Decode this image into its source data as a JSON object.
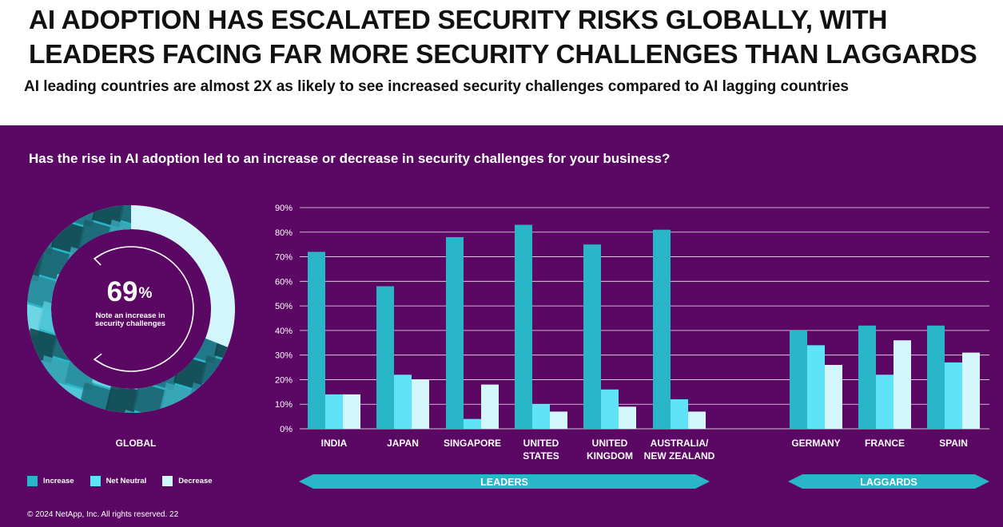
{
  "header": {
    "title": "AI ADOPTION HAS ESCALATED SECURITY RISKS GLOBALLY, WITH LEADERS FACING FAR MORE SECURITY CHALLENGES THAN LAGGARDS",
    "subtitle": "AI leading countries are almost 2X as likely to see increased security challenges compared to AI lagging countries"
  },
  "panel": {
    "question": "Has the rise in AI adoption led to an increase or decrease in security challenges for your business?"
  },
  "donut": {
    "value": "69",
    "unit": "%",
    "note": "Note an increase in security challenges",
    "label": "GLOBAL",
    "fraction": 0.69
  },
  "colors": {
    "background": "#5b0764",
    "increase": "#29b6c9",
    "net_neutral": "#5fe3f6",
    "decrease": "#d2f6fb",
    "grid": "#ffffff",
    "group_arrow": "#29b6c9"
  },
  "legend": [
    {
      "label": "Increase",
      "color": "#29b6c9"
    },
    {
      "label": "Net Neutral",
      "color": "#5fe3f6"
    },
    {
      "label": "Decrease",
      "color": "#d2f6fb"
    }
  ],
  "groups": [
    {
      "label": "LEADERS"
    },
    {
      "label": "LAGGARDS"
    }
  ],
  "footer": "© 2024 NetApp, Inc. All rights reserved.  22",
  "chart_data": {
    "type": "bar",
    "categories": [
      [
        "INDIA"
      ],
      [
        "JAPAN"
      ],
      [
        "SINGAPORE"
      ],
      [
        "UNITED",
        "STATES"
      ],
      [
        "UNITED",
        "KINGDOM"
      ],
      [
        "AUSTRALIA/",
        "NEW ZEALAND"
      ],
      [
        "GERMANY"
      ],
      [
        "FRANCE"
      ],
      [
        "SPAIN"
      ]
    ],
    "series": [
      {
        "name": "Increase",
        "values": [
          72,
          58,
          78,
          83,
          75,
          81,
          40,
          42,
          42
        ]
      },
      {
        "name": "Net Neutral",
        "values": [
          14,
          22,
          4,
          10,
          16,
          12,
          34,
          22,
          27
        ]
      },
      {
        "name": "Decrease",
        "values": [
          14,
          20,
          18,
          7,
          9,
          7,
          26,
          36,
          31
        ]
      }
    ],
    "y_ticks": [
      "0%",
      "10%",
      "20%",
      "30%",
      "40%",
      "50%",
      "60%",
      "70%",
      "80%",
      "90%"
    ],
    "ylim": [
      0,
      90
    ],
    "grid": true,
    "legend_position": "bottom-left"
  }
}
